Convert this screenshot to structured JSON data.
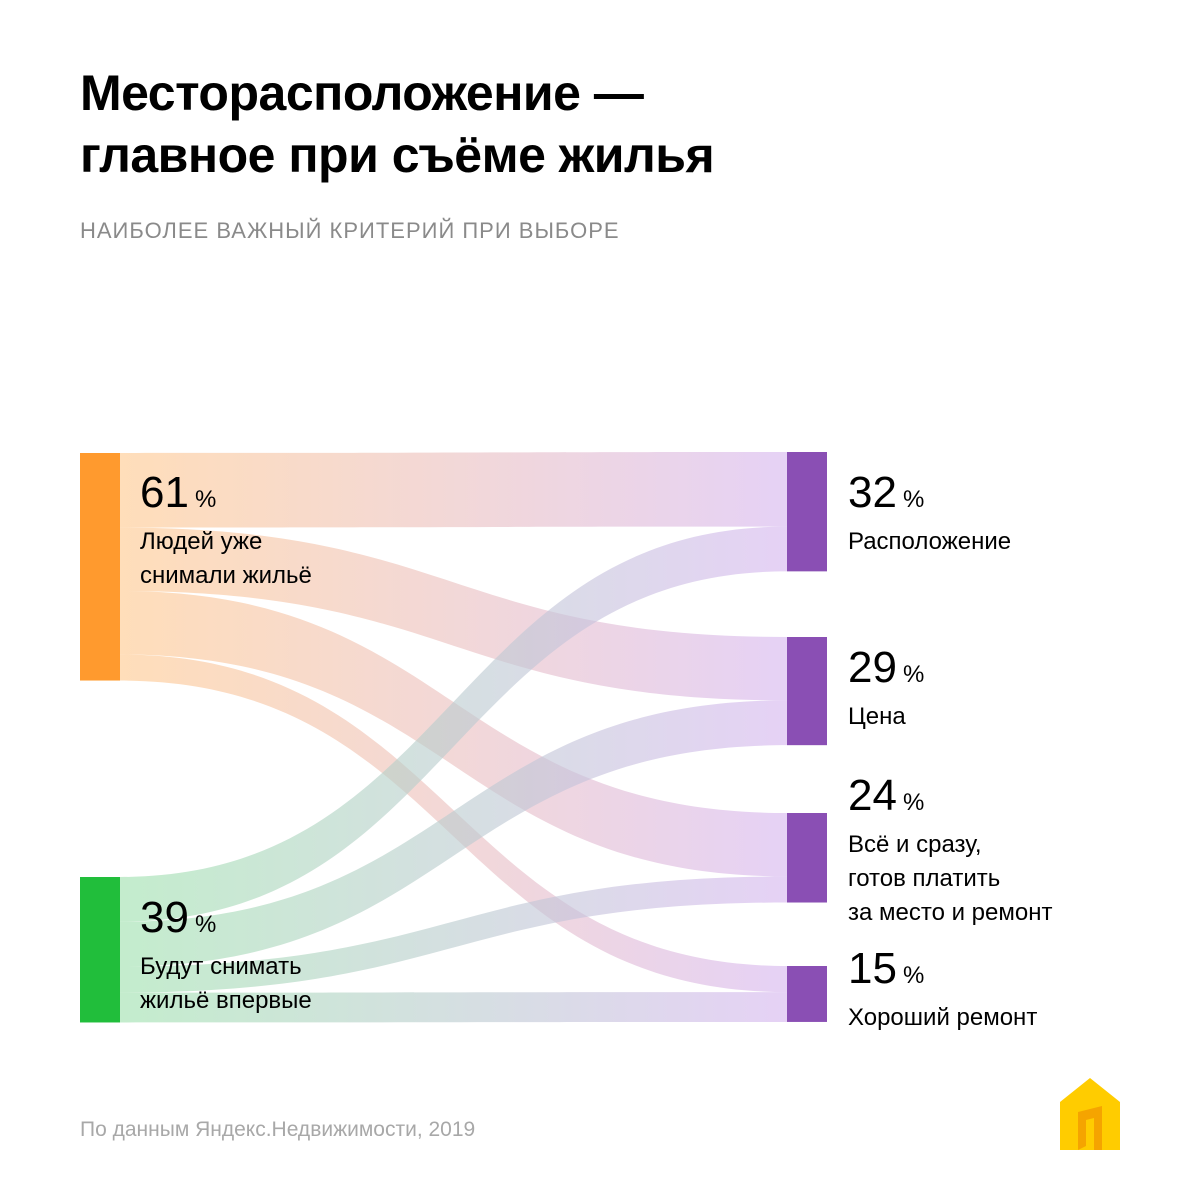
{
  "title_lines": [
    "Месторасположение —",
    "главное при съёме жилья"
  ],
  "subtitle": "НАИБОЛЕЕ ВАЖНЫЙ КРИТЕРИЙ ПРИ ВЫБОРЕ",
  "source": "По данным Яндекс.Недвижимости, 2019",
  "logo_icon": "yandex-realty-house-icon",
  "colors": {
    "orange": "#ff9a2e",
    "green": "#21be3b",
    "purple": "#8a4fb4",
    "flow_orange": "#ffc98f",
    "flow_green": "#9fe1ae",
    "flow_purple": "#d6b6ef",
    "logo_yellow": "#ffcc00"
  },
  "chart_data": {
    "type": "sankey",
    "title": "Месторасположение — главное при съёме жилья",
    "subtitle": "НАИБОЛЕЕ ВАЖНЫЙ КРИТЕРИЙ ПРИ ВЫБОРЕ",
    "unit": "%",
    "sources": [
      {
        "id": "experienced",
        "value": 61,
        "label_lines": [
          "Людей уже",
          "снимали жильё"
        ]
      },
      {
        "id": "first_time",
        "value": 39,
        "label_lines": [
          "Будут снимать",
          "жильё впервые"
        ]
      }
    ],
    "targets": [
      {
        "id": "location",
        "value": 32,
        "label_lines": [
          "Расположение"
        ]
      },
      {
        "id": "price",
        "value": 29,
        "label_lines": [
          "Цена"
        ]
      },
      {
        "id": "everything",
        "value": 24,
        "label_lines": [
          "Всё и сразу,",
          "готов платить",
          "за место и ремонт"
        ]
      },
      {
        "id": "renovation",
        "value": 15,
        "label_lines": [
          "Хороший ремонт"
        ]
      }
    ],
    "links": [
      {
        "source": "experienced",
        "target": "location",
        "value": 20
      },
      {
        "source": "experienced",
        "target": "price",
        "value": 17
      },
      {
        "source": "experienced",
        "target": "everything",
        "value": 17
      },
      {
        "source": "experienced",
        "target": "renovation",
        "value": 7
      },
      {
        "source": "first_time",
        "target": "location",
        "value": 12
      },
      {
        "source": "first_time",
        "target": "price",
        "value": 12
      },
      {
        "source": "first_time",
        "target": "everything",
        "value": 7
      },
      {
        "source": "first_time",
        "target": "renovation",
        "value": 8
      }
    ]
  }
}
